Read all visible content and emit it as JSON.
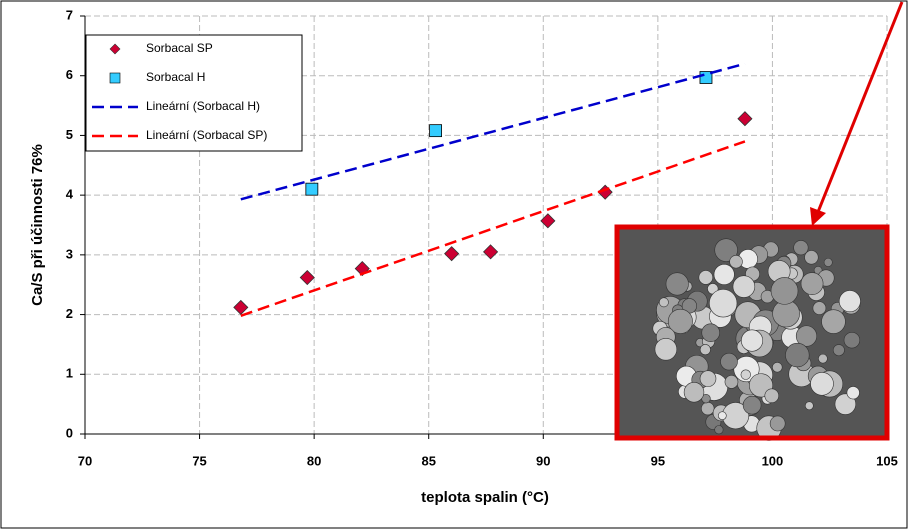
{
  "chart_data": {
    "type": "scatter",
    "x_label": "teplota spalin (°C)",
    "y_label": "Ca/S při účinnosti 76%",
    "xlim": [
      70,
      105
    ],
    "xticks": [
      70,
      75,
      80,
      85,
      90,
      95,
      100,
      105
    ],
    "ylim": [
      0,
      7
    ],
    "yticks": [
      0,
      1,
      2,
      3,
      4,
      5,
      6,
      7
    ],
    "grid": true,
    "series": [
      {
        "name": "Sorbacal SP",
        "color": "#cc0033",
        "marker": "diamond",
        "x": [
          76.8,
          79.7,
          82.1,
          86.0,
          87.7,
          90.2,
          92.7,
          98.8
        ],
        "values": [
          2.12,
          2.62,
          2.77,
          3.02,
          3.05,
          3.57,
          4.05,
          5.28
        ]
      },
      {
        "name": "Sorbacal H",
        "color": "#33ccff",
        "marker": "square",
        "x": [
          79.9,
          85.3,
          97.1
        ],
        "values": [
          4.1,
          5.08,
          5.97
        ]
      },
      {
        "name": "Lineární (Sorbacal H)",
        "color": "#0000cc",
        "marker": "dashed-line",
        "x": [
          76.8,
          98.8
        ],
        "values": [
          3.93,
          6.2
        ]
      },
      {
        "name": "Lineární (Sorbacal SP)",
        "color": "#ff0000",
        "marker": "dashed-line",
        "x": [
          76.8,
          98.8
        ],
        "values": [
          1.98,
          4.9
        ]
      }
    ]
  }
}
